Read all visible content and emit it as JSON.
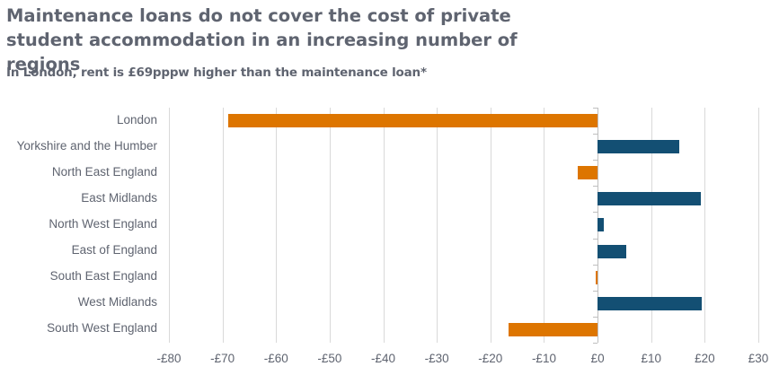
{
  "header": {
    "title": "Maintenance loans do not cover the cost of private student accommodation in an increasing number of regions",
    "subtitle": "In London, rent is £69pppw higher than the maintenance loan*"
  },
  "colors": {
    "negative": "#dd7500",
    "positive": "#134f73",
    "text": "#5f6470",
    "grid": "#d9d9d9"
  },
  "chart_data": {
    "type": "bar",
    "orientation": "horizontal",
    "title": "Maintenance loans do not cover the cost of private student accommodation in an increasing number of regions",
    "subtitle": "In London, rent is £69pppw higher than the maintenance loan*",
    "xlabel": "",
    "ylabel": "",
    "categories": [
      "London",
      "Yorkshire and the Humber",
      "North East England",
      "East Midlands",
      "North West England",
      "East of England",
      "South East England",
      "West Midlands",
      "South West England"
    ],
    "values": [
      -69,
      15.3,
      -3.7,
      19.3,
      1.2,
      5.3,
      -0.4,
      19.4,
      -16.6
    ],
    "xlim": [
      -80,
      30
    ],
    "xticks": [
      -80,
      -70,
      -60,
      -50,
      -40,
      -30,
      -20,
      -10,
      0,
      10,
      20,
      30
    ],
    "xtick_labels": [
      "-£80",
      "-£70",
      "-£60",
      "-£50",
      "-£40",
      "-£30",
      "-£20",
      "-£10",
      "£0",
      "£10",
      "£20",
      "£30"
    ],
    "grid": "vertical",
    "legend": "none",
    "color_rule": "negative values orange (#dd7500), positive values dark blue (#134f73)"
  }
}
